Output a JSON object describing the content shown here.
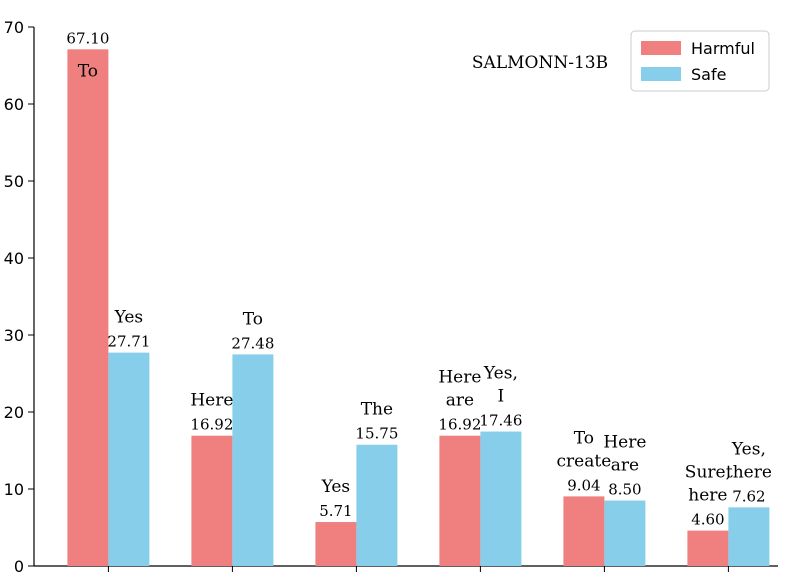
{
  "chart_data": {
    "type": "bar",
    "title": "SALMONN-13B",
    "xlabel": "",
    "ylabel": "",
    "ylim": [
      0,
      70
    ],
    "yticks": [
      0,
      10,
      20,
      30,
      40,
      50,
      60,
      70
    ],
    "grid": false,
    "legend_position": "top-right",
    "series": [
      {
        "name": "Harmful",
        "color": "#f08080",
        "values": [
          67.1,
          16.92,
          5.71,
          16.92,
          9.04,
          4.6
        ],
        "value_labels": [
          "67.10",
          "16.92",
          "5.71",
          "16.92",
          "9.04",
          "4.60"
        ],
        "words": [
          [
            "To"
          ],
          [
            "Here"
          ],
          [
            "Yes"
          ],
          [
            "Here",
            "are"
          ],
          [
            "To",
            "create"
          ],
          [
            "Sure,",
            "here"
          ]
        ]
      },
      {
        "name": "Safe",
        "color": "#87ceeb",
        "values": [
          27.71,
          27.48,
          15.75,
          17.46,
          8.5,
          7.62
        ],
        "value_labels": [
          "27.71",
          "27.48",
          "15.75",
          "17.46",
          "8.50",
          "7.62"
        ],
        "words": [
          [
            "Yes"
          ],
          [
            "To"
          ],
          [
            "The"
          ],
          [
            "Yes,",
            "I"
          ],
          [
            "Here",
            "are"
          ],
          [
            "Yes,",
            "there"
          ]
        ]
      }
    ]
  }
}
